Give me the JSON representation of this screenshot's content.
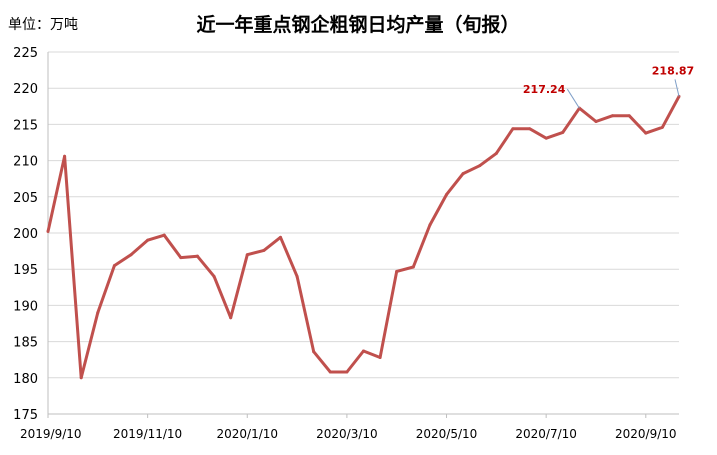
{
  "chart_data": {
    "type": "line",
    "title": "近一年重点钢企粗钢日均产量（旬报）",
    "unit_label": "单位：万吨",
    "ylim": [
      175,
      225
    ],
    "yticks": [
      175,
      180,
      185,
      190,
      195,
      200,
      205,
      210,
      215,
      220,
      225
    ],
    "xtick_labels": [
      {
        "label": "2019/9/10",
        "index": 0
      },
      {
        "label": "2019/11/10",
        "index": 6
      },
      {
        "label": "2020/1/10",
        "index": 12
      },
      {
        "label": "2020/3/10",
        "index": 18
      },
      {
        "label": "2020/5/10",
        "index": 24
      },
      {
        "label": "2020/7/10",
        "index": 30
      },
      {
        "label": "2020/9/10",
        "index": 36
      }
    ],
    "grid": true,
    "legend": "none",
    "series_color": "#c0504d",
    "label_color": "#c00000",
    "series": [
      {
        "values": [
          200.2,
          210.6,
          180.0,
          189.0,
          195.5,
          197.0,
          199.0,
          199.7,
          196.6,
          196.8,
          194.0,
          188.3,
          197.0,
          197.6,
          199.4,
          194.0,
          183.6,
          180.8,
          180.8,
          183.7,
          182.8,
          194.7,
          195.3,
          201.1,
          205.3,
          208.2,
          209.3,
          211.0,
          214.4,
          214.4,
          213.1,
          213.9,
          217.24,
          215.4,
          216.2,
          216.2,
          213.8,
          214.6,
          218.87
        ]
      }
    ],
    "data_labels": [
      {
        "index": 32,
        "text": "217.24"
      },
      {
        "index": 38,
        "text": "218.87"
      }
    ]
  }
}
